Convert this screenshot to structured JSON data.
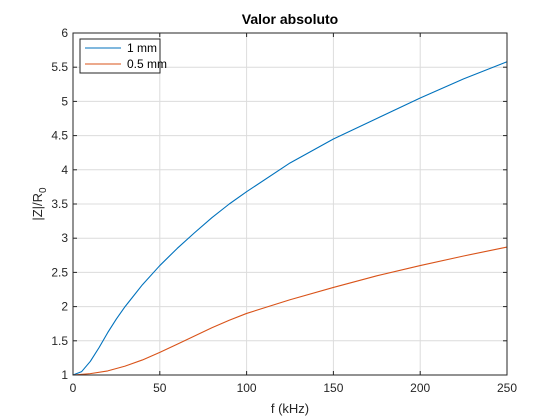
{
  "chart_data": {
    "type": "line",
    "title": "Valor absoluto",
    "xlabel": "f (kHz)",
    "ylabel_main": "|Z|/R",
    "ylabel_sub": "0",
    "xlim": [
      0,
      250
    ],
    "ylim": [
      1,
      6
    ],
    "xticks": [
      0,
      50,
      100,
      150,
      200,
      250
    ],
    "yticks": [
      1,
      1.5,
      2,
      2.5,
      3,
      3.5,
      4,
      4.5,
      5,
      5.5,
      6
    ],
    "ytick_labels": [
      "1",
      "1.5",
      "2",
      "2.5",
      "3",
      "3.5",
      "4",
      "4.5",
      "5",
      "5.5",
      "6"
    ],
    "grid": true,
    "legend_position": "top-left",
    "series": [
      {
        "name": "1 mm",
        "color": "#0072BD",
        "x": [
          0,
          5,
          10,
          15,
          20,
          25,
          30,
          40,
          50,
          60,
          70,
          80,
          90,
          100,
          125,
          150,
          175,
          200,
          225,
          250
        ],
        "y": [
          1.0,
          1.05,
          1.2,
          1.4,
          1.62,
          1.82,
          2.0,
          2.32,
          2.6,
          2.85,
          3.08,
          3.3,
          3.5,
          3.68,
          4.1,
          4.45,
          4.75,
          5.05,
          5.33,
          5.58
        ]
      },
      {
        "name": "0.5 mm",
        "color": "#D95319",
        "x": [
          0,
          10,
          20,
          30,
          40,
          50,
          60,
          70,
          80,
          90,
          100,
          125,
          150,
          175,
          200,
          225,
          250
        ],
        "y": [
          1.0,
          1.02,
          1.06,
          1.13,
          1.22,
          1.33,
          1.45,
          1.57,
          1.69,
          1.8,
          1.9,
          2.1,
          2.28,
          2.45,
          2.6,
          2.74,
          2.87
        ]
      }
    ]
  }
}
